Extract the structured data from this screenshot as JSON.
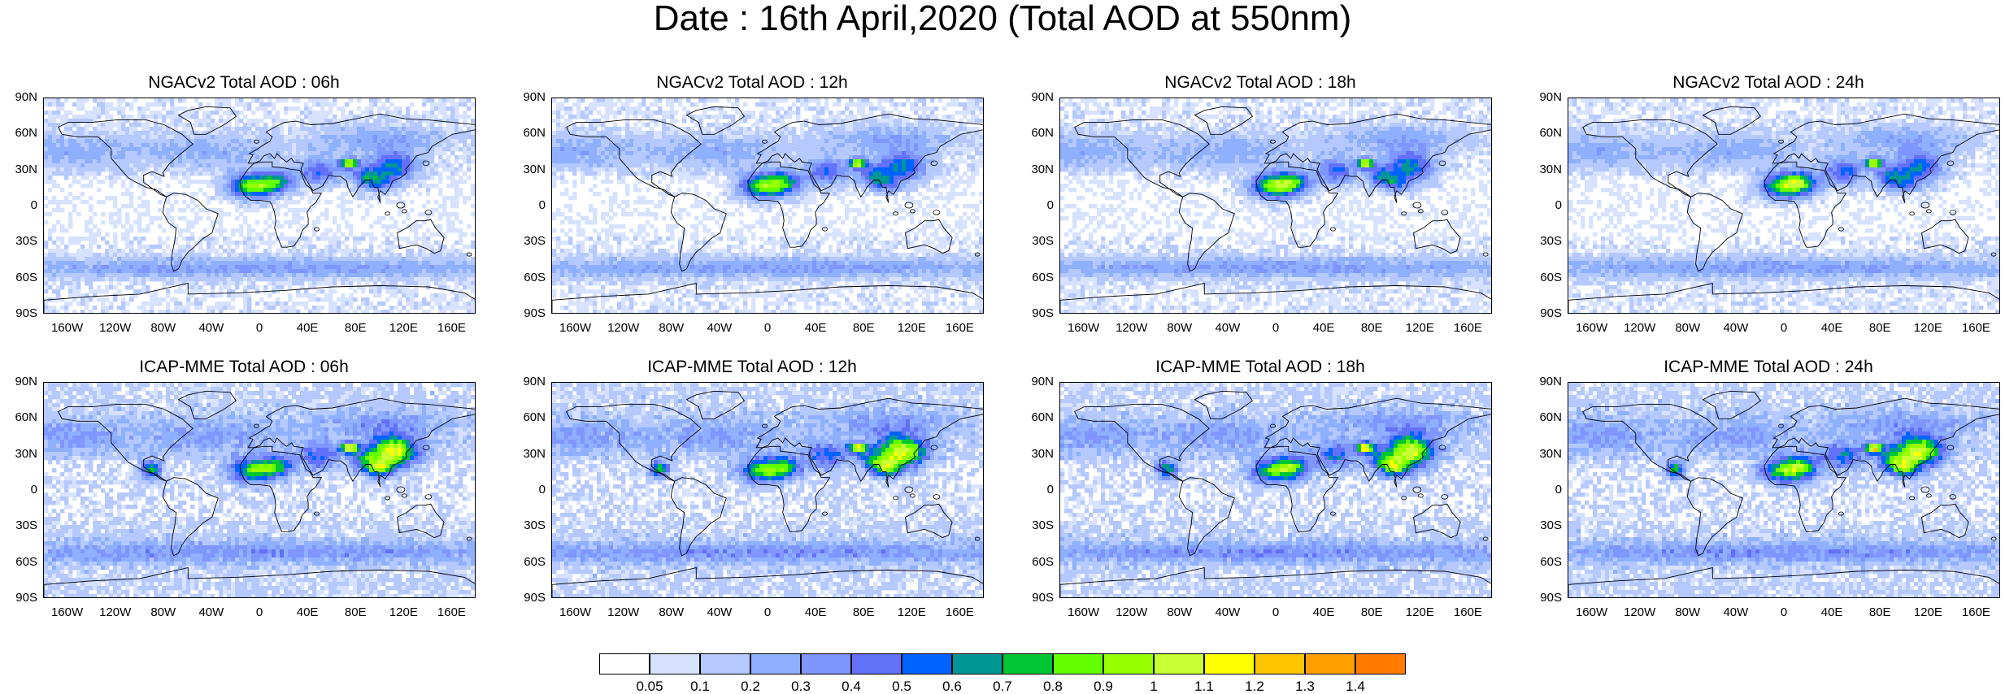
{
  "title": "Date : 16th April,2020 (Total AOD at 550nm)",
  "lat_ticks": [
    "90N",
    "60N",
    "30N",
    "0",
    "30S",
    "60S",
    "90S"
  ],
  "lon_ticks": [
    "160W",
    "120W",
    "80W",
    "40W",
    "0",
    "40E",
    "80E",
    "120E",
    "160E"
  ],
  "panels": [
    {
      "title": "NGACv2 Total AOD : 06h",
      "model": "NGACv2",
      "hour": "06h"
    },
    {
      "title": "NGACv2 Total AOD : 12h",
      "model": "NGACv2",
      "hour": "12h"
    },
    {
      "title": "NGACv2 Total AOD : 18h",
      "model": "NGACv2",
      "hour": "18h"
    },
    {
      "title": "NGACv2 Total AOD : 24h",
      "model": "NGACv2",
      "hour": "24h"
    },
    {
      "title": "ICAP-MME Total AOD : 06h",
      "model": "ICAP-MME",
      "hour": "06h"
    },
    {
      "title": "ICAP-MME Total AOD : 12h",
      "model": "ICAP-MME",
      "hour": "12h"
    },
    {
      "title": "ICAP-MME Total AOD : 18h",
      "model": "ICAP-MME",
      "hour": "18h"
    },
    {
      "title": "ICAP-MME Total AOD : 24h",
      "model": "ICAP-MME",
      "hour": "24h"
    }
  ],
  "colorbar": {
    "labels": [
      "0.05",
      "0.1",
      "0.2",
      "0.3",
      "0.4",
      "0.5",
      "0.6",
      "0.7",
      "0.8",
      "0.9",
      "1",
      "1.1",
      "1.2",
      "1.3",
      "1.4"
    ],
    "colors": [
      "#ffffff",
      "#d6e2ff",
      "#b5c9ff",
      "#8fb0ff",
      "#7f96ff",
      "#6370f8",
      "#0063ff",
      "#009696",
      "#00c633",
      "#63ff00",
      "#96ff00",
      "#c6ff33",
      "#ffff00",
      "#ffc600",
      "#ffa000",
      "#ff7c00",
      "#ff1900"
    ]
  }
}
